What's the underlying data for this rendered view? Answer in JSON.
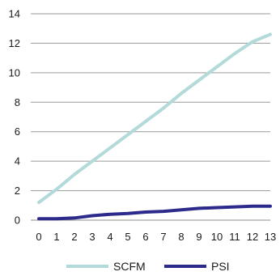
{
  "chart_data": {
    "type": "line",
    "title": "",
    "xlabel": "",
    "ylabel": "",
    "x": [
      0,
      1,
      2,
      3,
      4,
      5,
      6,
      7,
      8,
      9,
      10,
      11,
      12,
      13
    ],
    "xlim": [
      0,
      13
    ],
    "ylim": [
      0,
      14
    ],
    "yticks": [
      0,
      2,
      4,
      6,
      8,
      10,
      12,
      14
    ],
    "grid": "horizontal",
    "legend_position": "bottom",
    "series": [
      {
        "name": "SCFM",
        "color": "#b3dada",
        "values": [
          1.2,
          2.1,
          3.1,
          4.0,
          4.9,
          5.8,
          6.7,
          7.6,
          8.6,
          9.5,
          10.4,
          11.3,
          12.1,
          12.6
        ]
      },
      {
        "name": "PSI",
        "color": "#2c2a8a",
        "values": [
          0.1,
          0.1,
          0.15,
          0.3,
          0.4,
          0.45,
          0.55,
          0.6,
          0.7,
          0.8,
          0.85,
          0.9,
          0.95,
          0.95
        ]
      }
    ]
  }
}
